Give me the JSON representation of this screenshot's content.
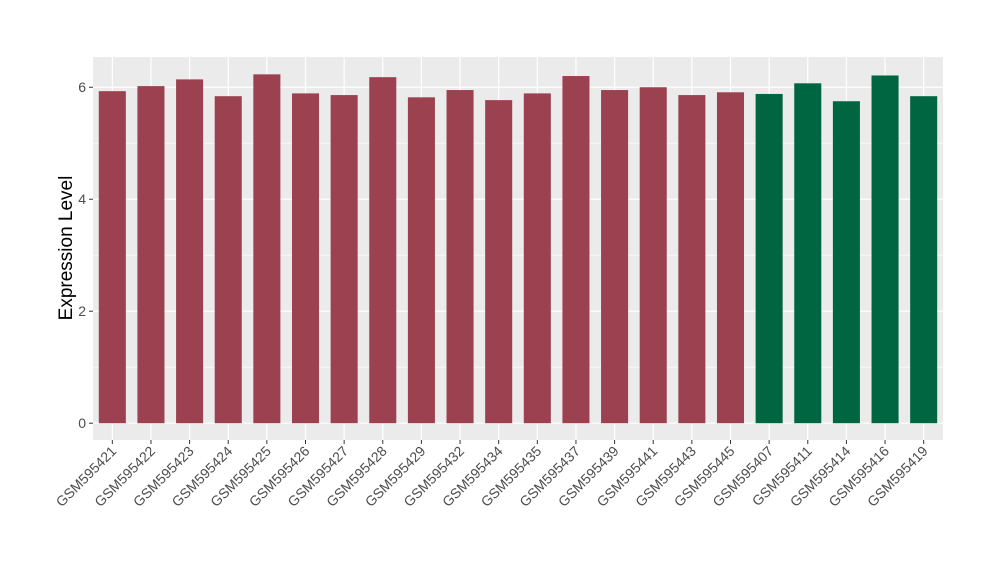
{
  "chart_data": {
    "type": "bar",
    "title": "",
    "xlabel": "",
    "ylabel": "Expression Level",
    "ylim": [
      -0.3,
      6.54
    ],
    "yticks": [
      0,
      2,
      4,
      6
    ],
    "grid": true,
    "legend": "none",
    "categories": [
      "GSM595421",
      "GSM595422",
      "GSM595423",
      "GSM595424",
      "GSM595425",
      "GSM595426",
      "GSM595427",
      "GSM595428",
      "GSM595429",
      "GSM595432",
      "GSM595434",
      "GSM595435",
      "GSM595437",
      "GSM595439",
      "GSM595441",
      "GSM595443",
      "GSM595445",
      "GSM595407",
      "GSM595411",
      "GSM595414",
      "GSM595416",
      "GSM595419"
    ],
    "values": [
      5.93,
      6.02,
      6.14,
      5.84,
      6.23,
      5.89,
      5.86,
      6.18,
      5.82,
      5.95,
      5.77,
      5.89,
      6.2,
      5.95,
      6.0,
      5.86,
      5.91,
      5.88,
      6.07,
      5.75,
      6.21,
      5.84
    ],
    "groups": [
      0,
      0,
      0,
      0,
      0,
      0,
      0,
      0,
      0,
      0,
      0,
      0,
      0,
      0,
      0,
      0,
      0,
      1,
      1,
      1,
      1,
      1
    ],
    "colors": [
      "#9b4150",
      "#006642"
    ],
    "panel_background": "#ebebeb"
  }
}
